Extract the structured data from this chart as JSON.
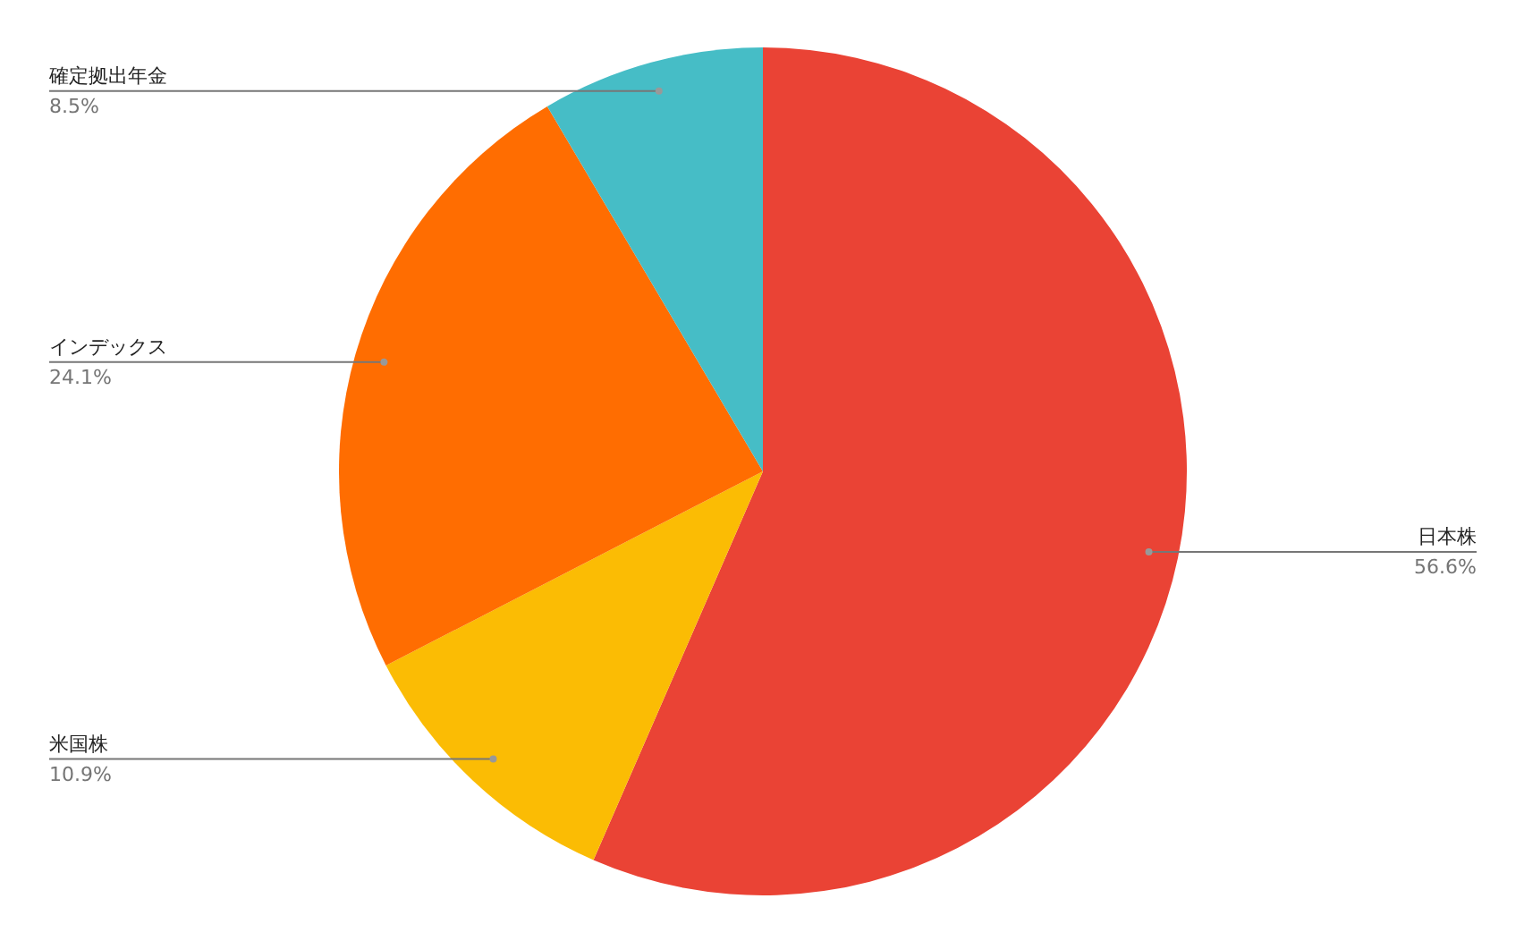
{
  "chart_data": {
    "type": "pie",
    "categories": [
      "日本株",
      "米国株",
      "インデックス",
      "確定拠出年金"
    ],
    "values": [
      56.6,
      10.9,
      24.1,
      8.5
    ],
    "colors": [
      "#ea4335",
      "#fbbc04",
      "#ff6d01",
      "#46bdc6"
    ],
    "value_labels": [
      "56.6%",
      "10.9%",
      "24.1%",
      "8.5%"
    ]
  }
}
